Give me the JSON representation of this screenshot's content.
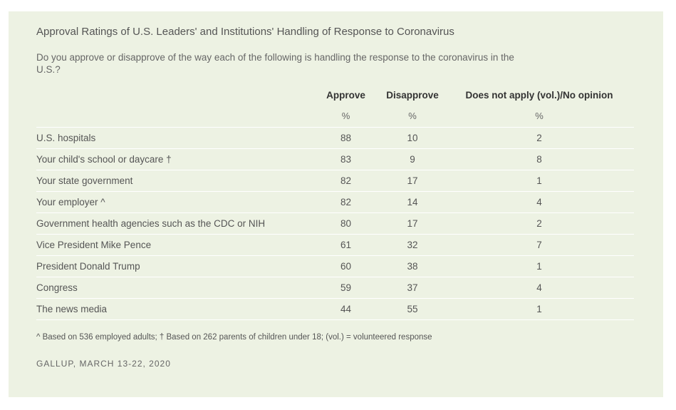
{
  "title": "Approval Ratings of U.S. Leaders' and Institutions' Handling of Response to Coronavirus",
  "question": "Do you approve or disapprove of the way each of the following is handling the response to the coronavirus in the U.S.?",
  "table": {
    "headers": [
      "Approve",
      "Disapprove",
      "Does not apply (vol.)/No opinion"
    ],
    "units": [
      "%",
      "%",
      "%"
    ],
    "rows": [
      {
        "label": "U.S. hospitals",
        "approve": "88",
        "disapprove": "10",
        "no_opinion": "2"
      },
      {
        "label": "Your child's school or daycare †",
        "approve": "83",
        "disapprove": "9",
        "no_opinion": "8"
      },
      {
        "label": "Your state government",
        "approve": "82",
        "disapprove": "17",
        "no_opinion": "1"
      },
      {
        "label": "Your employer ^",
        "approve": "82",
        "disapprove": "14",
        "no_opinion": "4"
      },
      {
        "label": "Government health agencies such as the CDC or NIH",
        "approve": "80",
        "disapprove": "17",
        "no_opinion": "2"
      },
      {
        "label": "Vice President Mike Pence",
        "approve": "61",
        "disapprove": "32",
        "no_opinion": "7"
      },
      {
        "label": "President Donald Trump",
        "approve": "60",
        "disapprove": "38",
        "no_opinion": "1"
      },
      {
        "label": "Congress",
        "approve": "59",
        "disapprove": "37",
        "no_opinion": "4"
      },
      {
        "label": "The news media",
        "approve": "44",
        "disapprove": "55",
        "no_opinion": "1"
      }
    ]
  },
  "footnote": "^ Based on 536 employed adults; † Based on 262 parents of children under 18; (vol.) = volunteered response",
  "source": "GALLUP, MARCH 13-22, 2020",
  "colors": {
    "background": "#edf2e3",
    "divider": "#ffffff"
  }
}
